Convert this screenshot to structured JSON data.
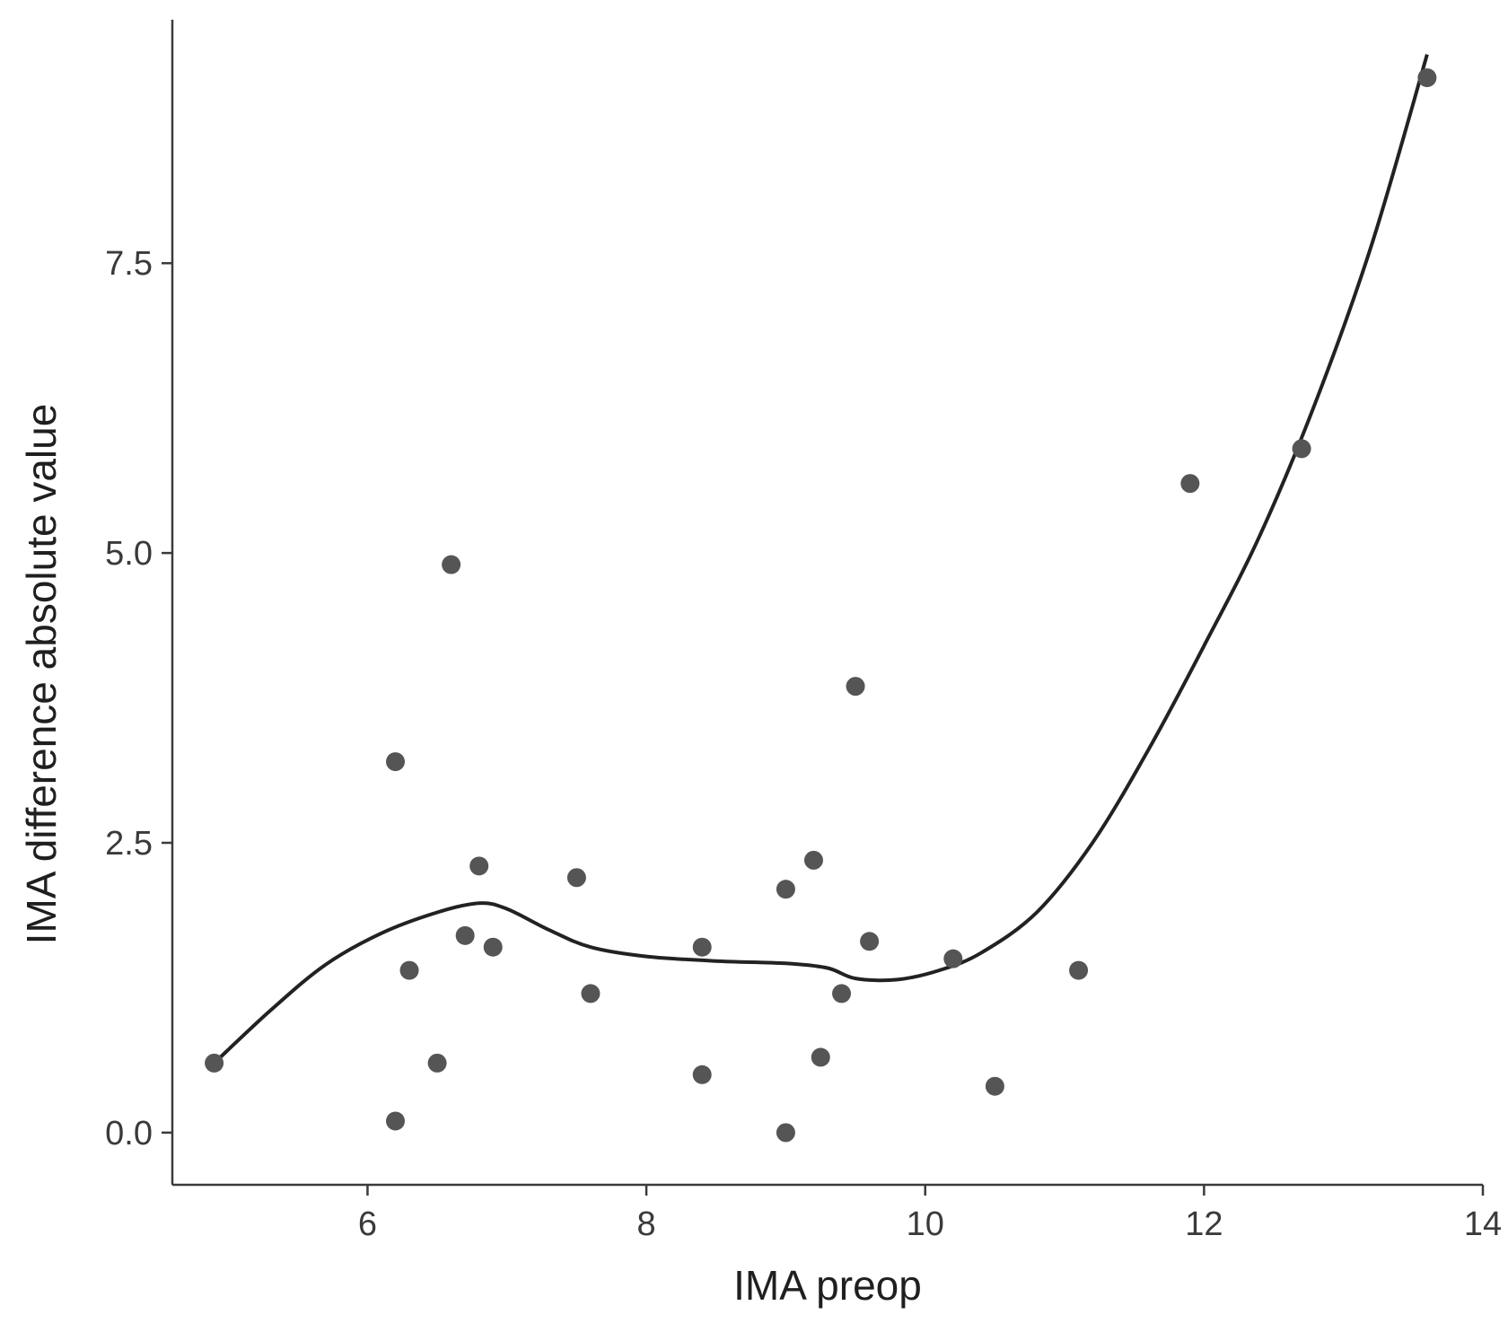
{
  "chart_data": {
    "type": "scatter",
    "title": "",
    "xlabel": "IMA preop",
    "ylabel": "IMA difference absolute value",
    "xlim": [
      4.6,
      14.0
    ],
    "ylim": [
      -0.45,
      9.6
    ],
    "x_ticks": [
      6,
      8,
      10,
      12,
      14
    ],
    "x_tick_labels": [
      "6",
      "8",
      "10",
      "12",
      "14"
    ],
    "y_ticks": [
      0.0,
      2.5,
      5.0,
      7.5
    ],
    "y_tick_labels": [
      "0.0",
      "2.5",
      "5.0",
      "7.5"
    ],
    "grid": false,
    "colors": {
      "points": "#555555",
      "line": "#222222",
      "axis": "#3a3a3a"
    },
    "series": [
      {
        "name": "observations",
        "kind": "scatter",
        "points": [
          {
            "x": 4.9,
            "y": 0.6
          },
          {
            "x": 6.2,
            "y": 3.2
          },
          {
            "x": 6.2,
            "y": 0.1
          },
          {
            "x": 6.3,
            "y": 1.4
          },
          {
            "x": 6.5,
            "y": 0.6
          },
          {
            "x": 6.6,
            "y": 4.9
          },
          {
            "x": 6.7,
            "y": 1.7
          },
          {
            "x": 6.8,
            "y": 2.3
          },
          {
            "x": 6.9,
            "y": 1.6
          },
          {
            "x": 7.5,
            "y": 2.2
          },
          {
            "x": 7.6,
            "y": 1.2
          },
          {
            "x": 8.4,
            "y": 1.6
          },
          {
            "x": 8.4,
            "y": 0.5
          },
          {
            "x": 9.0,
            "y": 0.0
          },
          {
            "x": 9.0,
            "y": 2.1
          },
          {
            "x": 9.2,
            "y": 2.35
          },
          {
            "x": 9.25,
            "y": 0.65
          },
          {
            "x": 9.4,
            "y": 1.2
          },
          {
            "x": 9.5,
            "y": 3.85
          },
          {
            "x": 9.6,
            "y": 1.65
          },
          {
            "x": 10.2,
            "y": 1.5
          },
          {
            "x": 10.5,
            "y": 0.4
          },
          {
            "x": 11.1,
            "y": 1.4
          },
          {
            "x": 11.9,
            "y": 5.6
          },
          {
            "x": 12.7,
            "y": 5.9
          },
          {
            "x": 13.6,
            "y": 9.1
          }
        ]
      },
      {
        "name": "smoothed fit",
        "kind": "line",
        "points": [
          {
            "x": 4.9,
            "y": 0.6
          },
          {
            "x": 5.3,
            "y": 1.05
          },
          {
            "x": 5.7,
            "y": 1.45
          },
          {
            "x": 6.1,
            "y": 1.72
          },
          {
            "x": 6.5,
            "y": 1.9
          },
          {
            "x": 6.8,
            "y": 1.98
          },
          {
            "x": 7.0,
            "y": 1.93
          },
          {
            "x": 7.3,
            "y": 1.75
          },
          {
            "x": 7.6,
            "y": 1.6
          },
          {
            "x": 8.0,
            "y": 1.52
          },
          {
            "x": 8.5,
            "y": 1.48
          },
          {
            "x": 9.0,
            "y": 1.46
          },
          {
            "x": 9.3,
            "y": 1.42
          },
          {
            "x": 9.5,
            "y": 1.33
          },
          {
            "x": 9.8,
            "y": 1.32
          },
          {
            "x": 10.1,
            "y": 1.4
          },
          {
            "x": 10.4,
            "y": 1.55
          },
          {
            "x": 10.8,
            "y": 1.9
          },
          {
            "x": 11.2,
            "y": 2.5
          },
          {
            "x": 11.6,
            "y": 3.3
          },
          {
            "x": 12.0,
            "y": 4.2
          },
          {
            "x": 12.4,
            "y": 5.15
          },
          {
            "x": 12.8,
            "y": 6.3
          },
          {
            "x": 13.2,
            "y": 7.65
          },
          {
            "x": 13.6,
            "y": 9.3
          }
        ]
      }
    ]
  }
}
